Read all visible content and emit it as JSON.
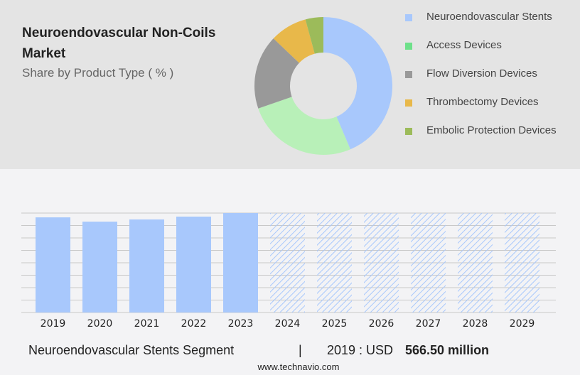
{
  "header": {
    "title": "Neuroendovascular Non-Coils Market",
    "subtitle": "Share by Product Type ( % )"
  },
  "footer": {
    "segment": "Neuroendovascular Stents Segment",
    "separator": "|",
    "year_label": "2019 : USD",
    "value": "566.50 million",
    "site": "www.technavio.com"
  },
  "chart_data": [
    {
      "type": "pie",
      "donut": true,
      "legend": [
        "Neuroendovascular Stents",
        "Access Devices",
        "Flow Diversion Devices",
        "Thrombectomy Devices",
        "Embolic Protection Devices"
      ],
      "legend_colors": [
        "#a8c8fc",
        "#6ee08a",
        "#999999",
        "#e8b84a",
        "#9cbb5a"
      ],
      "slice_colors": [
        "#a8c8fc",
        "#b8f0b8",
        "#999999",
        "#e8b84a",
        "#9cbb5a"
      ],
      "values": [
        43.6,
        26.1,
        17.4,
        8.7,
        4.2
      ],
      "legend_placement": "right"
    },
    {
      "type": "bar",
      "categories": [
        "2019",
        "2020",
        "2021",
        "2022",
        "2023",
        "2024",
        "2025",
        "2026",
        "2027",
        "2028",
        "2029"
      ],
      "values": [
        566.5,
        541,
        554,
        571,
        592,
        null,
        null,
        null,
        null,
        null,
        null
      ],
      "forecast_from": "2024",
      "bar_color": "#a8c8fc",
      "ylim": [
        0,
        592
      ],
      "grid": true
    }
  ]
}
